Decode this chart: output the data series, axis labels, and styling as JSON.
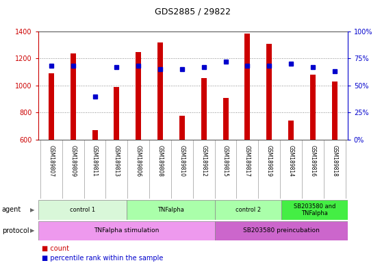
{
  "title": "GDS2885 / 29822",
  "samples": [
    "GSM189807",
    "GSM189809",
    "GSM189811",
    "GSM189813",
    "GSM189806",
    "GSM189808",
    "GSM189810",
    "GSM189812",
    "GSM189815",
    "GSM189817",
    "GSM189819",
    "GSM189814",
    "GSM189816",
    "GSM189818"
  ],
  "counts": [
    1090,
    1240,
    670,
    990,
    1250,
    1320,
    775,
    1055,
    905,
    1385,
    1310,
    740,
    1080,
    1030
  ],
  "percentile_ranks": [
    68,
    68,
    40,
    67,
    68,
    65,
    65,
    67,
    72,
    68,
    68,
    70,
    67,
    63
  ],
  "ylim_left": [
    600,
    1400
  ],
  "ylim_right": [
    0,
    100
  ],
  "yticks_left": [
    600,
    800,
    1000,
    1200,
    1400
  ],
  "yticks_right": [
    0,
    25,
    50,
    75,
    100
  ],
  "bar_color": "#cc0000",
  "dot_color": "#0000cc",
  "bar_baseline": 600,
  "agent_groups": [
    {
      "label": "control 1",
      "start": 0,
      "end": 4,
      "color": "#d9f7d9"
    },
    {
      "label": "TNFalpha",
      "start": 4,
      "end": 8,
      "color": "#aaffaa"
    },
    {
      "label": "control 2",
      "start": 8,
      "end": 11,
      "color": "#aaffaa"
    },
    {
      "label": "SB203580 and\nTNFalpha",
      "start": 11,
      "end": 14,
      "color": "#44ee44"
    }
  ],
  "protocol_groups": [
    {
      "label": "TNFalpha stimulation",
      "start": 0,
      "end": 8,
      "color": "#ee99ee"
    },
    {
      "label": "SB203580 preincubation",
      "start": 8,
      "end": 14,
      "color": "#cc66cc"
    }
  ],
  "bar_color_hex": "#cc0000",
  "dot_color_hex": "#0000cc",
  "left_axis_color": "#cc0000",
  "right_axis_color": "#0000cc",
  "grid_color": "#888888",
  "sample_bg_color": "#cccccc",
  "sample_border_color": "#999999"
}
